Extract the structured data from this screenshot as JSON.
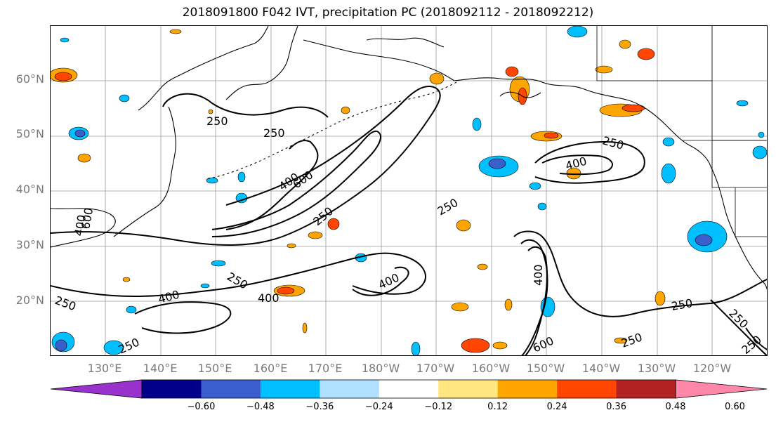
{
  "title": "2018091800 F042 IVT, precipitation PC (2018092112 - 2018092212)",
  "lat_labels": [
    "60°N",
    "50°N",
    "40°N",
    "30°N",
    "20°N"
  ],
  "lon_labels": [
    "130°E",
    "140°E",
    "150°E",
    "160°E",
    "170°E",
    "180°W",
    "170°W",
    "160°W",
    "150°W",
    "140°W",
    "130°W",
    "120°W"
  ],
  "contour_labels": [
    "250",
    "250",
    "400",
    "600",
    "250",
    "250",
    "400",
    "250",
    "400",
    "250",
    "400",
    "400",
    "250",
    "600",
    "400",
    "250",
    "250",
    "400",
    "250",
    "250",
    "250",
    "600"
  ],
  "colorbar": {
    "ticks": [
      "−0.60",
      "−0.48",
      "−0.36",
      "−0.24",
      "−0.12",
      "0.12",
      "0.24",
      "0.36",
      "0.48",
      "0.60"
    ],
    "colors": [
      "#9932cc",
      "#00008b",
      "#3a5fcd",
      "#00bfff",
      "#b0e0ff",
      "#ffffff",
      "#ffe680",
      "#ffa500",
      "#ff4500",
      "#b22222",
      "#ff88aa"
    ]
  },
  "colors": {
    "contour": "#000000",
    "grid": "#808080",
    "coast": "#000000",
    "label_gray": "#7a7a7a"
  }
}
